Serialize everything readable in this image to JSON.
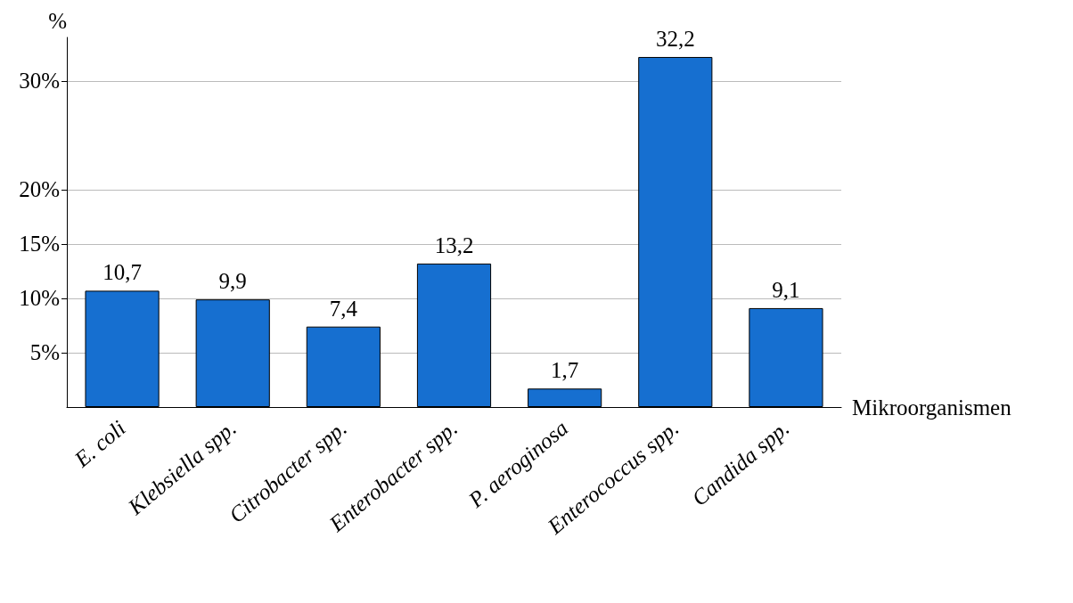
{
  "chart_data": {
    "type": "bar",
    "xlabel": "Mikroorganismen",
    "ylabel": "%",
    "categories": [
      "E. coli",
      "Klebsiella spp.",
      "Citrobacter spp.",
      "Enterobacter spp.",
      "P. aeroginosa",
      "Enterococcus spp.",
      "Candida spp."
    ],
    "values": [
      10.7,
      9.9,
      7.4,
      13.2,
      1.7,
      32.2,
      9.1
    ],
    "value_labels": [
      "10,7",
      "9,9",
      "7,4",
      "13,2",
      "1,7",
      "32,2",
      "9,1"
    ],
    "color": "#166fd0",
    "ylim": [
      0,
      34
    ],
    "yticks": [
      {
        "value": 5,
        "label": "5%"
      },
      {
        "value": 10,
        "label": "10%"
      },
      {
        "value": 15,
        "label": "15%"
      },
      {
        "value": 20,
        "label": "20%"
      },
      {
        "value": 30,
        "label": "30%"
      }
    ],
    "grid": "y"
  }
}
